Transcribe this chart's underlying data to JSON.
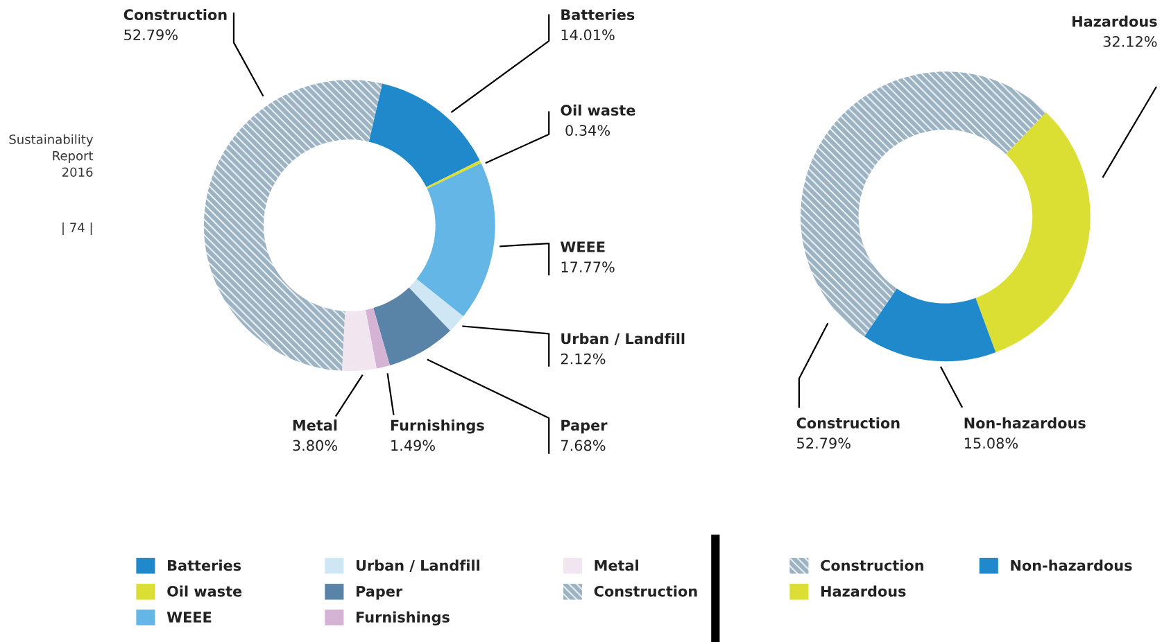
{
  "chart_data": [
    {
      "type": "donut",
      "categories": [
        "Batteries",
        "Oil waste",
        "WEEE",
        "Urban / Landfill",
        "Paper",
        "Furnishings",
        "Metal",
        "Construction"
      ],
      "values": [
        14.01,
        0.34,
        17.77,
        2.12,
        7.68,
        1.49,
        3.8,
        52.79
      ],
      "value_labels": [
        "14.01%",
        " 0.34%",
        "17.77%",
        "2.12%",
        "7.68%",
        "1.49%",
        "3.80%",
        "52.79%"
      ],
      "colors": [
        "#2089cb",
        "#dcdf33",
        "#63b6e6",
        "#cfe6f5",
        "#5984a8",
        "#d4b3d5",
        "#f1e5ef",
        "#9bb3c3"
      ],
      "legend": "bottom",
      "annotations": [
        "Sustainability Report 2016",
        "| 74 |"
      ]
    },
    {
      "type": "donut",
      "categories": [
        "Construction",
        "Hazardous",
        "Non-hazardous"
      ],
      "values": [
        52.79,
        32.12,
        15.08
      ],
      "value_labels": [
        "52.79%",
        "32.12%",
        "15.08%"
      ],
      "colors": [
        "#9bb3c3",
        "#dcdf33",
        "#2089cb"
      ],
      "legend": "bottom"
    }
  ]
}
